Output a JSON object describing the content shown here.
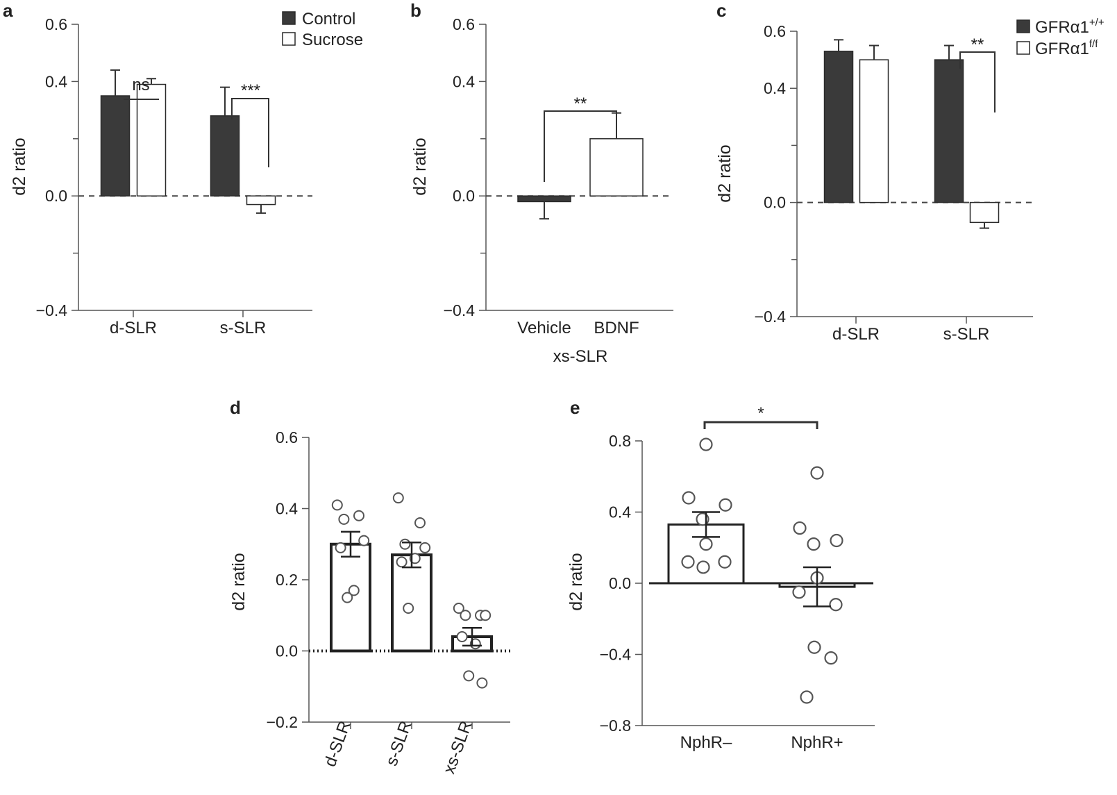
{
  "figure": {
    "background": "#ffffff"
  },
  "colors": {
    "dark": "#3a3a3a",
    "light": "#ffffff",
    "stroke": "#2a2a2a",
    "axis": "#555555",
    "text": "#222222"
  },
  "chart_data": [
    {
      "panel": "a",
      "type": "bar",
      "ylabel": "d2 ratio",
      "ylim": [
        -0.4,
        0.6
      ],
      "yticks": [
        -0.4,
        0.0,
        0.4,
        0.6
      ],
      "ytick_labels": [
        "−0.4",
        "0.0",
        "0.4",
        "0.6"
      ],
      "categories": [
        "d-SLR",
        "s-SLR"
      ],
      "series": [
        {
          "name": "Control",
          "fill": "dark",
          "values": [
            0.35,
            0.28
          ],
          "errors": [
            0.09,
            0.1
          ]
        },
        {
          "name": "Sucrose",
          "fill": "light",
          "values": [
            0.39,
            -0.03
          ],
          "errors": [
            0.02,
            0.03
          ]
        }
      ],
      "legend": "top-right",
      "annotations": [
        {
          "text": "ns",
          "category": 0,
          "style": "line"
        },
        {
          "text": "***",
          "category": 1,
          "style": "bracket"
        }
      ]
    },
    {
      "panel": "b",
      "type": "bar",
      "ylabel": "d2 ratio",
      "xlabel": "xs-SLR",
      "ylim": [
        -0.4,
        0.6
      ],
      "yticks": [
        -0.4,
        0.0,
        0.4,
        0.6
      ],
      "ytick_labels": [
        "−0.4",
        "0.0",
        "0.4",
        "0.6"
      ],
      "categories": [
        "Vehicle",
        "BDNF"
      ],
      "values": [
        -0.02,
        0.2
      ],
      "errors": [
        0.06,
        0.09
      ],
      "fills": [
        "dark",
        "light"
      ],
      "annotations": [
        {
          "text": "**",
          "style": "bracket"
        }
      ]
    },
    {
      "panel": "c",
      "type": "bar",
      "ylabel": "d2 ratio",
      "ylim": [
        -0.4,
        0.6
      ],
      "yticks": [
        -0.4,
        0.0,
        0.4,
        0.6
      ],
      "ytick_labels": [
        "−0.4",
        "0.0",
        "0.4",
        "0.6"
      ],
      "categories": [
        "d-SLR",
        "s-SLR"
      ],
      "series": [
        {
          "name": "GFRα1",
          "sup": "+/+",
          "fill": "dark",
          "values": [
            0.53,
            0.5
          ],
          "errors": [
            0.04,
            0.05
          ]
        },
        {
          "name": "GFRα1",
          "sup": "f/f",
          "fill": "light",
          "values": [
            0.5,
            -0.07
          ],
          "errors": [
            0.05,
            0.02
          ]
        }
      ],
      "legend": "top-right",
      "annotations": [
        {
          "text": "**",
          "category": 1,
          "style": "bracket"
        }
      ]
    },
    {
      "panel": "d",
      "type": "bar",
      "ylabel": "d2 ratio",
      "ylim": [
        -0.2,
        0.6
      ],
      "yticks": [
        -0.2,
        0.0,
        0.2,
        0.4,
        0.6
      ],
      "ytick_labels": [
        "−0.2",
        "0.0",
        "0.2",
        "0.4",
        "0.6"
      ],
      "categories": [
        "d-SLR",
        "s-SLR",
        "xs-SLR"
      ],
      "values": [
        0.3,
        0.27,
        0.04
      ],
      "errors": [
        0.035,
        0.035,
        0.025
      ],
      "points": [
        [
          0.41,
          0.38,
          0.37,
          0.31,
          0.29,
          0.17,
          0.15
        ],
        [
          0.43,
          0.36,
          0.3,
          0.29,
          0.25,
          0.26,
          0.12
        ],
        [
          0.12,
          0.1,
          0.1,
          0.1,
          0.04,
          0.02,
          -0.07,
          -0.09
        ]
      ]
    },
    {
      "panel": "e",
      "type": "bar",
      "ylabel": "d2 ratio",
      "ylim": [
        -0.8,
        0.8
      ],
      "yticks": [
        -0.8,
        -0.4,
        0.0,
        0.4,
        0.8
      ],
      "ytick_labels": [
        "−0.8",
        "−0.4",
        "0.0",
        "0.4",
        "0.8"
      ],
      "categories": [
        "NphR–",
        "NphR+"
      ],
      "values": [
        0.33,
        -0.02
      ],
      "errors": [
        0.07,
        0.11
      ],
      "points": [
        [
          0.78,
          0.48,
          0.44,
          0.36,
          0.22,
          0.12,
          0.12,
          0.09
        ],
        [
          0.62,
          0.31,
          0.24,
          0.22,
          0.03,
          -0.05,
          -0.12,
          -0.36,
          -0.42,
          -0.64
        ]
      ],
      "annotations": [
        {
          "text": "*",
          "style": "bracket"
        }
      ]
    }
  ]
}
